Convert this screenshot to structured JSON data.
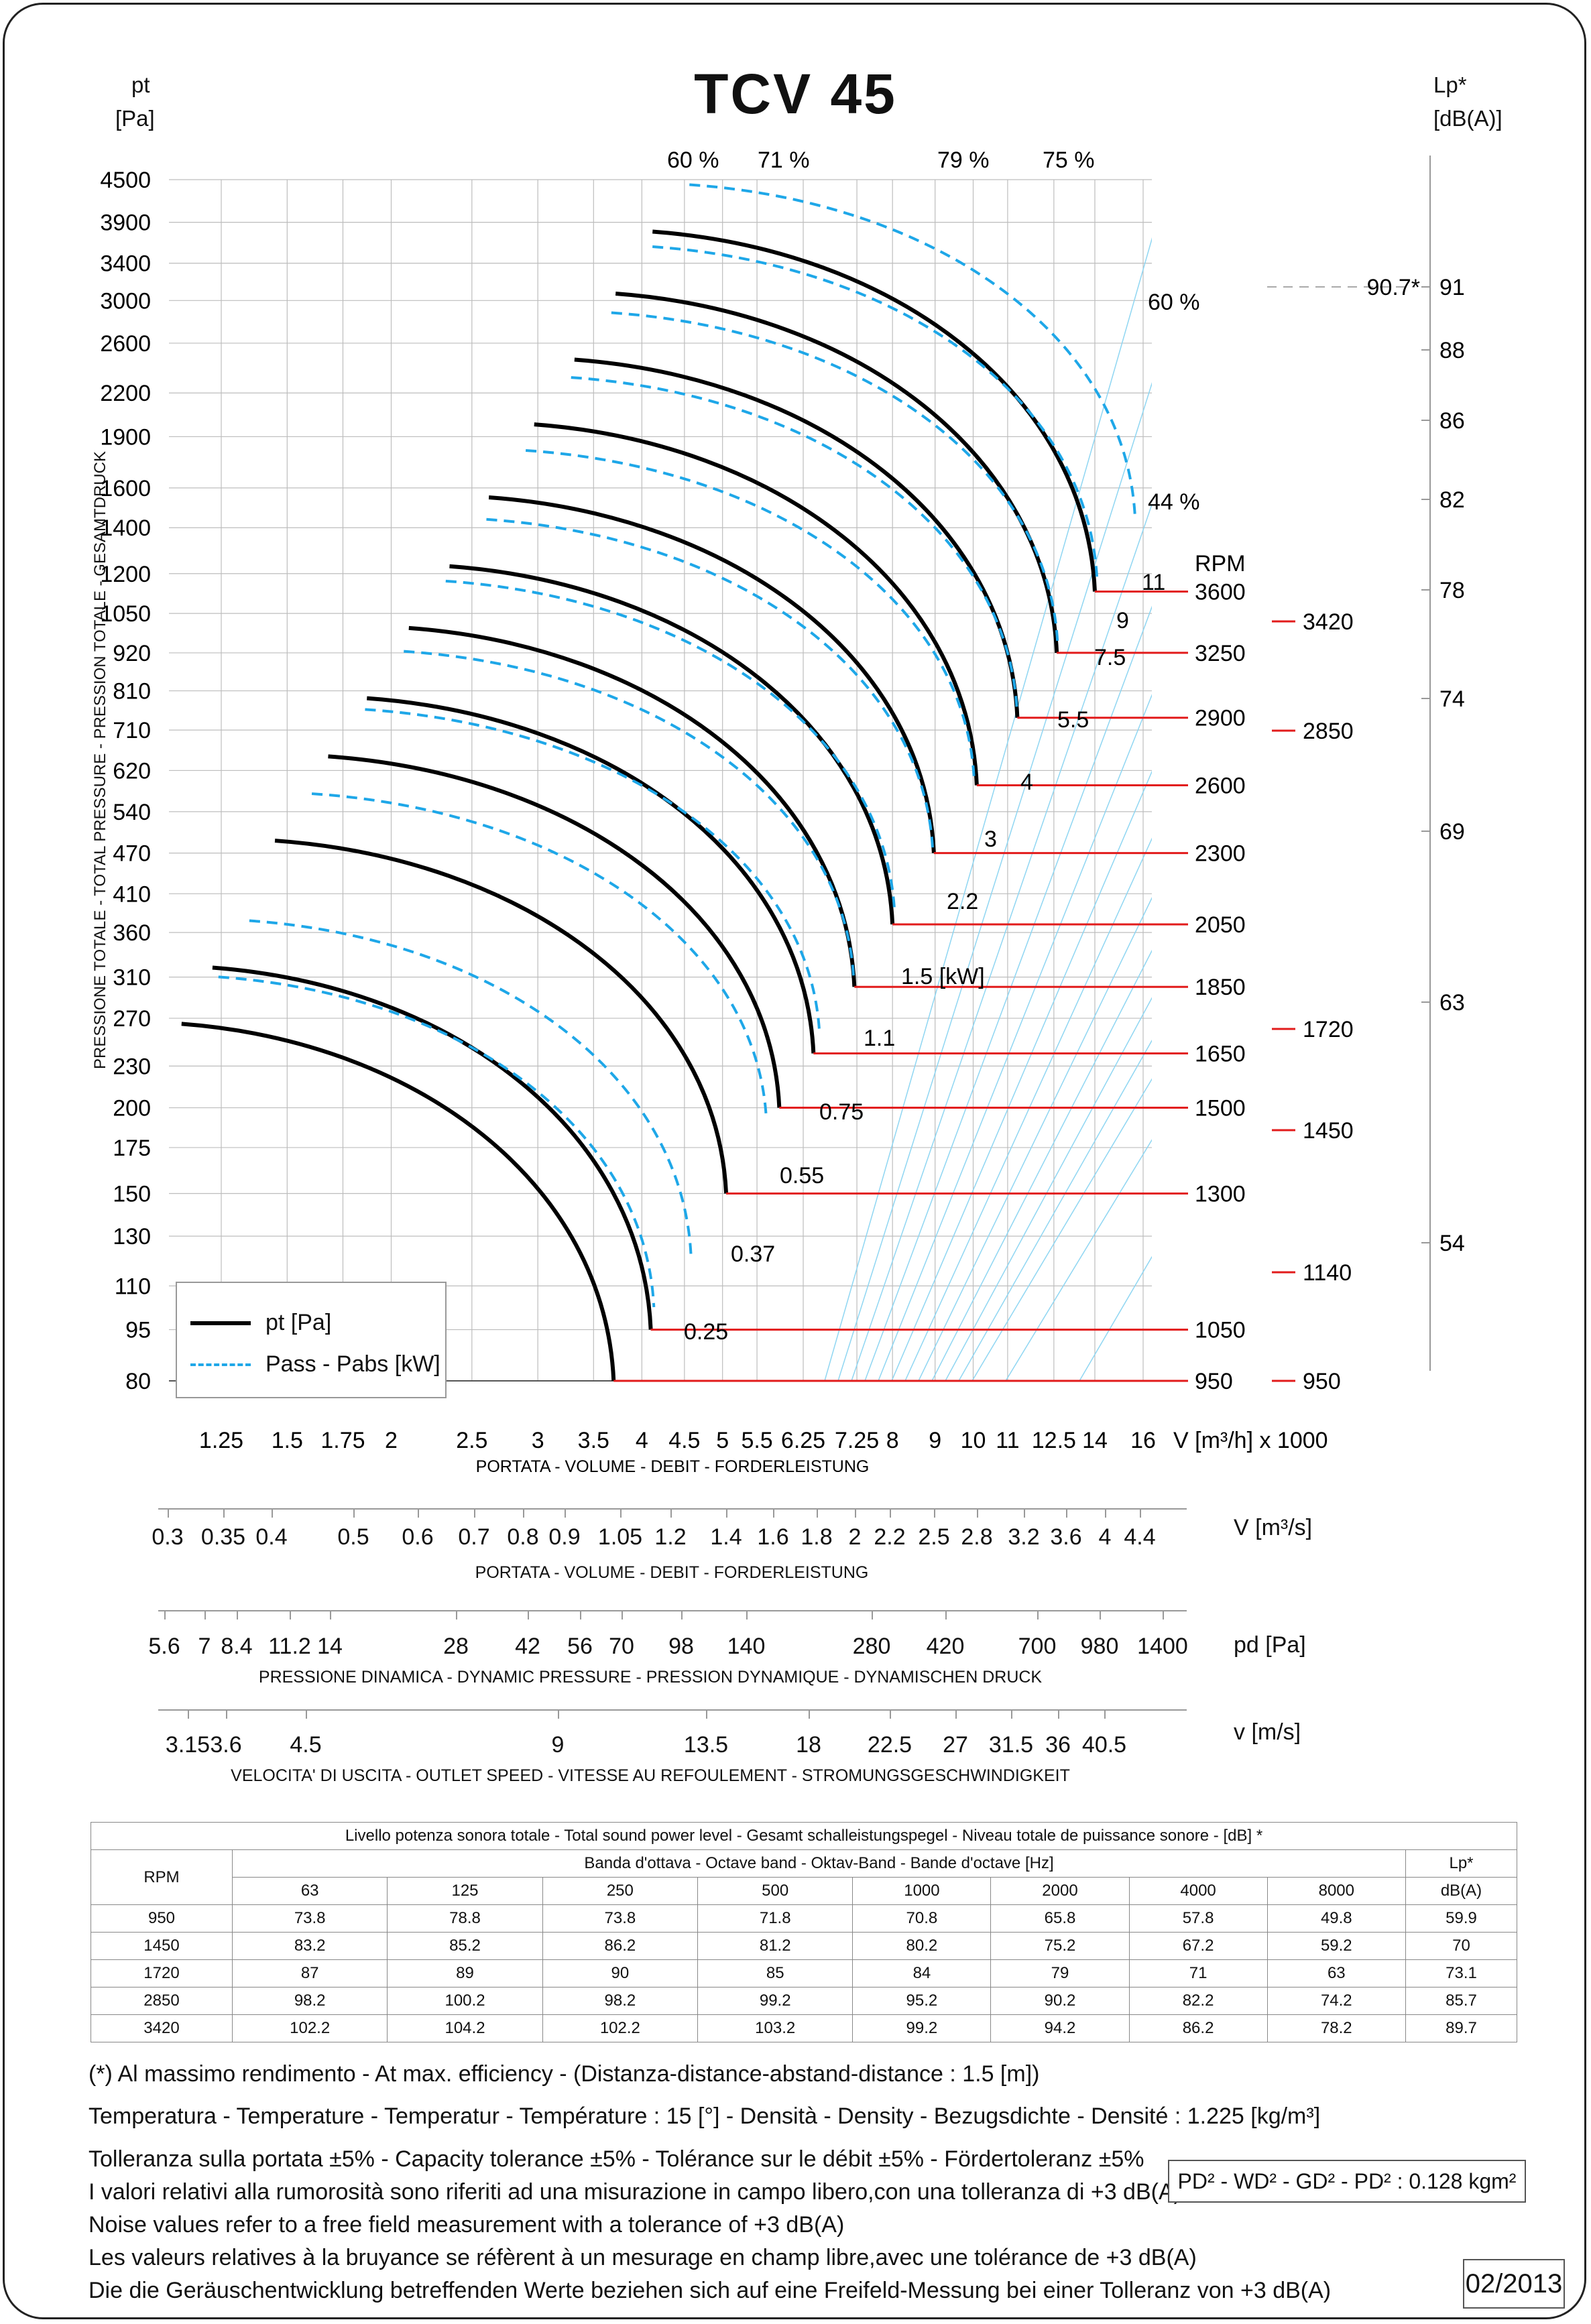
{
  "chart_data": {
    "type": "line",
    "title": "TCV 45",
    "ylabel_top": "pt",
    "ylabel_unit": "[Pa]",
    "ylabel_side": "PRESSIONE TOTALE - TOTAL PRESSURE - PRESSION TOTALE - GESAMTDRUCK",
    "ylabel_right": "Lp*",
    "ylabel_right_unit": "[dB(A)]",
    "y_ticks": [
      "80",
      "95",
      "110",
      "130",
      "150",
      "175",
      "200",
      "230",
      "270",
      "310",
      "360",
      "410",
      "470",
      "540",
      "620",
      "710",
      "810",
      "920",
      "1050",
      "1200",
      "1400",
      "1600",
      "1900",
      "2200",
      "2600",
      "3000",
      "3400",
      "3900",
      "4500"
    ],
    "x_ticks": [
      "1.25",
      "1.5",
      "1.75",
      "2",
      "2.5",
      "3",
      "3.5",
      "4",
      "4.5",
      "5",
      "5.5",
      "6.25",
      "7.25",
      "8",
      "9",
      "10",
      "11",
      "12.5",
      "14",
      "16"
    ],
    "x_unit": "V [m³/h]  x 1000",
    "xlabel": "PORTATA - VOLUME - DEBIT - FORDERLEISTUNG",
    "lp_ticks": [
      "91",
      "88",
      "86",
      "82",
      "78",
      "74",
      "69",
      "63",
      "54"
    ],
    "lp_marker": "90.7*",
    "efficiency_labels": [
      "60 %",
      "71 %",
      "79 %",
      "75 %",
      "60 %",
      "44 %"
    ],
    "rpm_header": "RPM",
    "rpm_curves": [
      "3600",
      "3250",
      "2900",
      "2600",
      "2300",
      "2050",
      "1850",
      "1650",
      "1500",
      "1300",
      "1050",
      "950"
    ],
    "rpm_right": [
      "3420",
      "2850",
      "1720",
      "1450",
      "1140",
      "950"
    ],
    "power_labels": [
      "11",
      "9",
      "7.5",
      "5.5",
      "4",
      "3",
      "2.2",
      "1.5  [kW]",
      "1.1",
      "0.75",
      "0.55",
      "0.37",
      "0.25"
    ],
    "series": [
      {
        "name": "pt [Pa]",
        "rpm": [
          "950",
          "1050",
          "1300",
          "1500",
          "1650",
          "1850",
          "2050",
          "2300",
          "2600",
          "2900",
          "3250",
          "3600"
        ],
        "start_x": [
          1.12,
          1.22,
          1.45,
          1.68,
          1.87,
          2.1,
          2.35,
          2.62,
          2.97,
          3.32,
          3.72,
          4.12
        ],
        "start_pt": [
          265,
          320,
          490,
          650,
          790,
          1000,
          1230,
          1550,
          1980,
          2460,
          3070,
          3780
        ],
        "end_x": [
          3.7,
          4.1,
          5.05,
          5.85,
          6.43,
          7.2,
          8.0,
          8.97,
          10.1,
          11.3,
          12.6,
          14.0
        ],
        "end_pt": [
          80,
          95,
          150,
          200,
          240,
          300,
          370,
          470,
          590,
          740,
          920,
          1130
        ]
      },
      {
        "name": "Pass - Pabs [kW]",
        "style": "dashed"
      }
    ],
    "grid": true,
    "legend": "bottom-left"
  },
  "lower_axes": [
    {
      "unit": "V  [m³/s]",
      "caption": "PORTATA - VOLUME - DEBIT - FORDERLEISTUNG",
      "ticks": [
        "0.3",
        "0.35",
        "0.4",
        "0.5",
        "0.6",
        "0.7",
        "0.8",
        "0.9",
        "1.05",
        "1.2",
        "1.4",
        "1.6",
        "1.8",
        "2",
        "2.2",
        "2.5",
        "2.8",
        "3.2",
        "3.6",
        "4",
        "4.4"
      ]
    },
    {
      "unit": "pd  [Pa]",
      "caption": "PRESSIONE DINAMICA - DYNAMIC PRESSURE - PRESSION DYNAMIQUE - DYNAMISCHEN DRUCK",
      "ticks": [
        "5.6",
        "7",
        "8.4",
        "11.2",
        "14",
        "28",
        "42",
        "56",
        "70",
        "98",
        "140",
        "280",
        "420",
        "700",
        "980",
        "1400"
      ]
    },
    {
      "unit": "v  [m/s]",
      "caption": "VELOCITA' DI USCITA - OUTLET SPEED - VITESSE AU REFOULEMENT - STROMUNGSGESCHWINDIGKEIT",
      "ticks": [
        "3.15",
        "3.6",
        "4.5",
        "9",
        "13.5",
        "18",
        "22.5",
        "27",
        "31.5",
        "36",
        "40.5"
      ]
    }
  ],
  "sound_table": {
    "title": "Livello potenza sonora totale - Total sound power level - Gesamt schalleistungspegel - Niveau totale de puissance sonore - [dB]   *",
    "band_title": "Banda d'ottava - Octave band - Oktav-Band - Bande d'octave [Hz]",
    "rpm_header": "RPM",
    "lp_header": "Lp*",
    "lp_unit": "dB(A)",
    "bands": [
      "63",
      "125",
      "250",
      "500",
      "1000",
      "2000",
      "4000",
      "8000"
    ],
    "rows": [
      {
        "rpm": "950",
        "values": [
          "73.8",
          "78.8",
          "73.8",
          "71.8",
          "70.8",
          "65.8",
          "57.8",
          "49.8"
        ],
        "lp": "59.9"
      },
      {
        "rpm": "1450",
        "values": [
          "83.2",
          "85.2",
          "86.2",
          "81.2",
          "80.2",
          "75.2",
          "67.2",
          "59.2"
        ],
        "lp": "70"
      },
      {
        "rpm": "1720",
        "values": [
          "87",
          "89",
          "90",
          "85",
          "84",
          "79",
          "71",
          "63"
        ],
        "lp": "73.1"
      },
      {
        "rpm": "2850",
        "values": [
          "98.2",
          "100.2",
          "98.2",
          "99.2",
          "95.2",
          "90.2",
          "82.2",
          "74.2"
        ],
        "lp": "85.7"
      },
      {
        "rpm": "3420",
        "values": [
          "102.2",
          "104.2",
          "102.2",
          "103.2",
          "99.2",
          "94.2",
          "86.2",
          "78.2"
        ],
        "lp": "89.7"
      }
    ]
  },
  "notes": {
    "efficiency": "(*) Al massimo rendimento - At max. efficiency - (Distanza-distance-abstand-distance : 1.5 [m])",
    "temperature": "Temperatura - Temperature - Temperatur - Température : 15 [°]  -  Densità - Density - Bezugsdichte - Densité : 1.225 [kg/m³]",
    "tolerance": "Tolleranza sulla portata  ±5% - Capacity tolerance ±5% - Tolérance sur le débit ±5% - Fördertoleranz ±5%",
    "noise_it": "I valori relativi alla rumorosità sono riferiti ad una misurazione in campo libero,con una tolleranza di +3 dB(A)",
    "noise_en": "Noise values refer to a free field measurement with a tolerance of +3 dB(A)",
    "noise_fr": "Les valeurs relatives à la bruyance se réfèrent à un mesurage en champ libre,avec une tolérance de +3 dB(A)",
    "noise_de": "Die die Geräuschentwicklung betreffenden Werte beziehen sich auf eine Freifeld-Messung bei einer Tolleranz von +3 dB(A)"
  },
  "inertia": "PD² -  WD² - GD² -  PD²  :  0.128 kgm²",
  "date": "02/2013",
  "legend_labels": {
    "pt": "pt [Pa]",
    "pass": "Pass - Pabs [kW]"
  },
  "colors": {
    "curve": "#000000",
    "dashed": "#1ea7e8",
    "grid": "#bdbdbd",
    "system": "#8fd6f2",
    "red": "#e21b1b"
  }
}
